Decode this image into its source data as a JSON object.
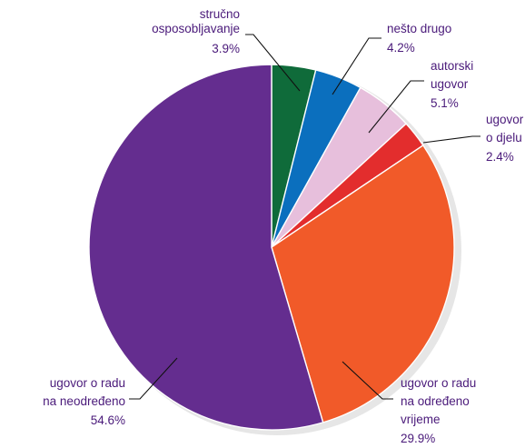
{
  "chart_data": {
    "type": "pie",
    "title": "",
    "start_angle_deg": 0,
    "direction": "clockwise",
    "slices": [
      {
        "id": "strucno-osposobljavanje",
        "label": [
          "stručno",
          "osposobljavanje"
        ],
        "value_label": "3.9%",
        "value": 3.9,
        "color": "#0f6b3a"
      },
      {
        "id": "nesto-drugo",
        "label": [
          "nešto drugo"
        ],
        "value_label": "4.2%",
        "value": 4.2,
        "color": "#0b6fbe"
      },
      {
        "id": "autorski-ugovor",
        "label": [
          "autorski",
          "ugovor"
        ],
        "value_label": "5.1%",
        "value": 5.1,
        "color": "#e7bfdc"
      },
      {
        "id": "ugovor-o-djelu",
        "label": [
          "ugovor",
          "o djelu"
        ],
        "value_label": "2.4%",
        "value": 2.4,
        "color": "#e32d2d"
      },
      {
        "id": "ugovor-o-radu-na-odredeno-vrijeme",
        "label": [
          "ugovor o radu",
          "na određeno",
          "vrijeme"
        ],
        "value_label": "29.9%",
        "value": 29.9,
        "color": "#f15a29"
      },
      {
        "id": "ugovor-o-radu-na-neodredeno",
        "label": [
          "ugovor o radu",
          "na neodređeno"
        ],
        "value_label": "54.6%",
        "value": 54.6,
        "color": "#642d8f"
      }
    ]
  }
}
